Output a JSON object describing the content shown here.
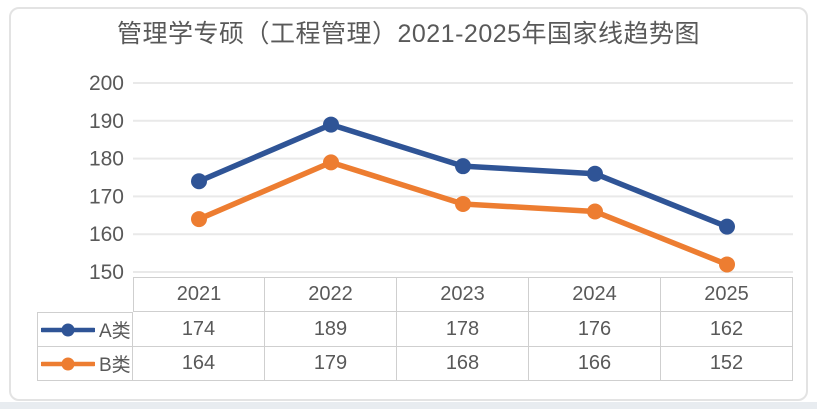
{
  "title": "管理学专硕（工程管理）2021-2025年国家线趋势图",
  "chart_data": {
    "type": "line",
    "title": "管理学专硕（工程管理）2021-2025年国家线趋势图",
    "categories": [
      "2021",
      "2022",
      "2023",
      "2024",
      "2025"
    ],
    "series": [
      {
        "name": "A类",
        "color": "#2F5496",
        "values": [
          174,
          189,
          178,
          176,
          162
        ]
      },
      {
        "name": "B类",
        "color": "#ED7D31",
        "values": [
          164,
          179,
          168,
          166,
          152
        ]
      }
    ],
    "xlabel": "",
    "ylabel": "",
    "ylim": [
      150,
      200
    ],
    "yticks": [
      200,
      190,
      180,
      170,
      160,
      150
    ],
    "grid": true,
    "legend_position": "data-table-left",
    "data_table_shown": true
  },
  "colors": {
    "series_a": "#2F5496",
    "series_b": "#ED7D31",
    "text": "#595959",
    "gridline": "#e9e9e9",
    "table_border": "#cfcfcf",
    "card_border": "#e3e3e3",
    "bottom_strip": "#e8ecf0"
  }
}
